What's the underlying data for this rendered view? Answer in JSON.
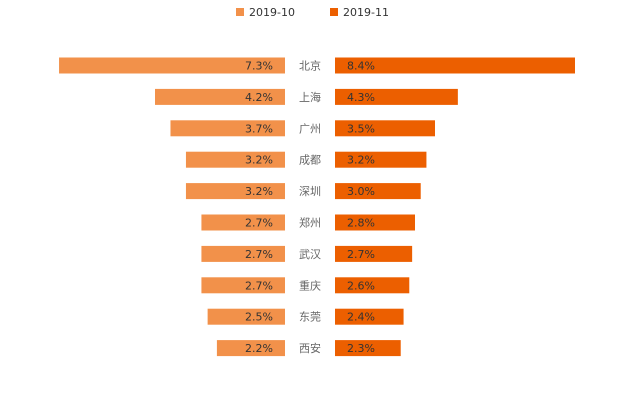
{
  "chart_data": {
    "type": "bar",
    "orientation": "horizontal-butterfly",
    "title": "",
    "legend_position": "top-center",
    "categories": [
      "北京",
      "上海",
      "广州",
      "成都",
      "深圳",
      "郑州",
      "武汉",
      "重庆",
      "东莞",
      "西安"
    ],
    "series": [
      {
        "name": "2019-10",
        "color": "#f2914a",
        "side": "left",
        "values": [
          7.3,
          4.2,
          3.7,
          3.2,
          3.2,
          2.7,
          2.7,
          2.7,
          2.5,
          2.2
        ],
        "labels": [
          "7.3%",
          "4.2%",
          "3.7%",
          "3.2%",
          "3.2%",
          "2.7%",
          "2.7%",
          "2.7%",
          "2.5%",
          "2.2%"
        ]
      },
      {
        "name": "2019-11",
        "color": "#ec5f00",
        "side": "right",
        "values": [
          8.4,
          4.3,
          3.5,
          3.2,
          3.0,
          2.8,
          2.7,
          2.6,
          2.4,
          2.3
        ],
        "labels": [
          "8.4%",
          "4.3%",
          "3.5%",
          "3.2%",
          "3.0%",
          "2.8%",
          "2.7%",
          "2.6%",
          "2.4%",
          "2.3%"
        ]
      }
    ],
    "value_unit": "%",
    "xlim": [
      0,
      8.4
    ]
  }
}
